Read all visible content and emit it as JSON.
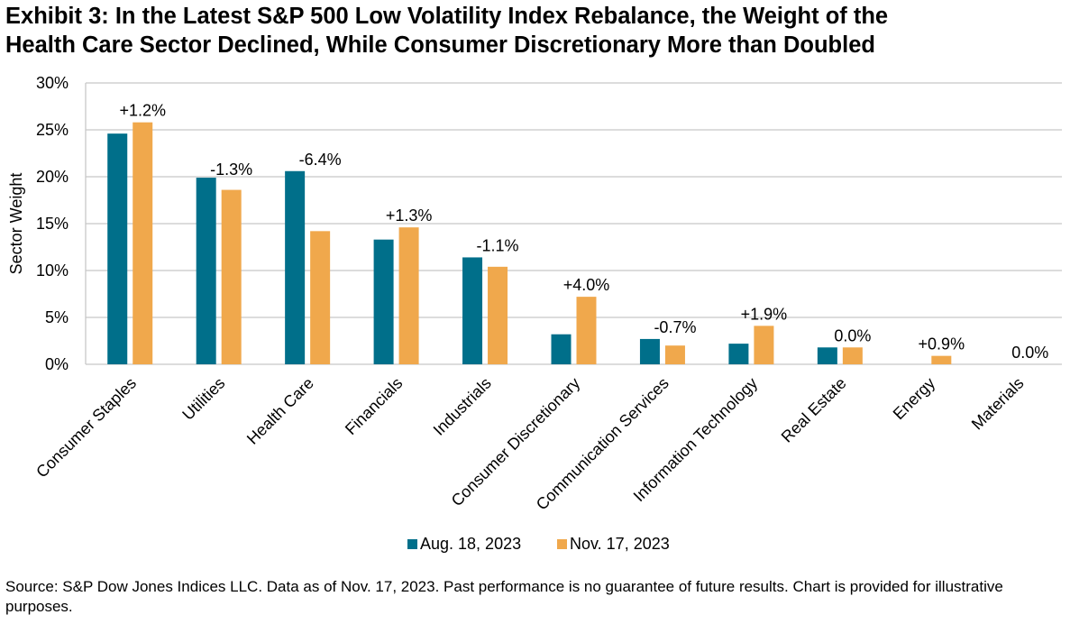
{
  "title_line1": "Exhibit 3: In the Latest S&P 500 Low Volatility Index Rebalance, the Weight of the",
  "title_line2": "Health Care Sector Declined, While Consumer Discretionary More than Doubled",
  "source": "Source: S&P Dow Jones Indices LLC. Data as of Nov. 17, 2023. Past performance is no guarantee of future results. Chart is provided for illustrative purposes.",
  "colors": {
    "aug": "#006F8A",
    "nov": "#F0A84C",
    "grid": "#C8C8C8"
  },
  "chart_data": {
    "type": "bar",
    "title": "Exhibit 3: In the Latest S&P 500 Low Volatility Index Rebalance, the Weight of the Health Care Sector Declined, While Consumer Discretionary More than Doubled",
    "xlabel": "",
    "ylabel": "Sector Weight",
    "ylim": [
      0,
      30
    ],
    "yticks": [
      "0%",
      "5%",
      "10%",
      "15%",
      "20%",
      "25%",
      "30%"
    ],
    "ytick_values": [
      0,
      5,
      10,
      15,
      20,
      25,
      30
    ],
    "grid": true,
    "legend_position": "bottom",
    "categories": [
      "Consumer Staples",
      "Utilities",
      "Health Care",
      "Financials",
      "Industrials",
      "Consumer Discretionary",
      "Communication Services",
      "Information Technology",
      "Real Estate",
      "Energy",
      "Materials"
    ],
    "series": [
      {
        "name": "Aug. 18, 2023",
        "values": [
          24.6,
          19.9,
          20.6,
          13.3,
          11.4,
          3.2,
          2.7,
          2.2,
          1.8,
          0.0,
          0.0
        ]
      },
      {
        "name": "Nov. 17, 2023",
        "values": [
          25.8,
          18.6,
          14.2,
          14.6,
          10.4,
          7.2,
          2.0,
          4.1,
          1.8,
          0.9,
          0.0
        ]
      }
    ],
    "annotations": [
      "+1.2%",
      "-1.3%",
      "-6.4%",
      "+1.3%",
      "-1.1%",
      "+4.0%",
      "-0.7%",
      "+1.9%",
      "0.0%",
      "+0.9%",
      "0.0%"
    ]
  }
}
